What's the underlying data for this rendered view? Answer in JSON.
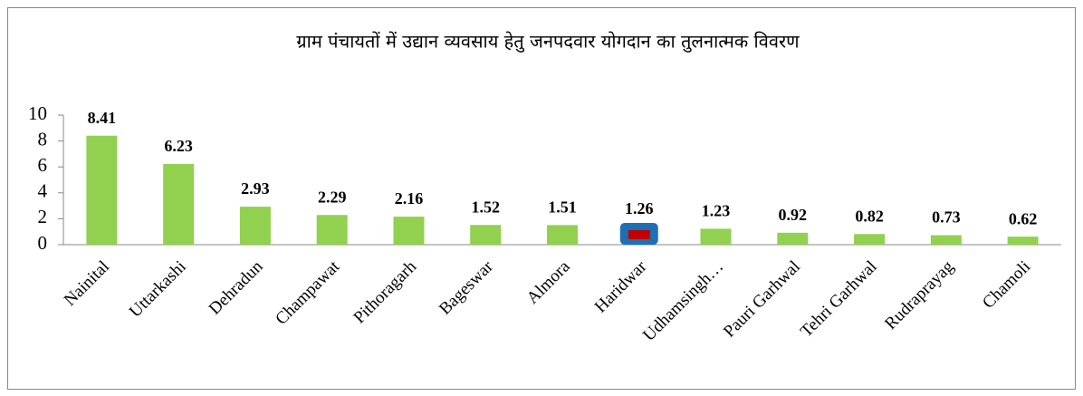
{
  "chart_data": {
    "type": "bar",
    "title": "ग्राम पंचायतों में उद्यान व्यवसाय हेतु जनपदवार योगदान का तुलनात्मक विवरण",
    "categories": [
      "Nainital",
      "Uttarkashi",
      "Dehradun",
      "Champawat",
      "Pithoragarh",
      "Bageswar",
      "Almora",
      "Haridwar",
      "Udhamsingh…",
      "Pauri Garhwal",
      "Tehri Garhwal",
      "Rudraprayag",
      "Chamoli"
    ],
    "values": [
      8.41,
      6.23,
      2.93,
      2.29,
      2.16,
      1.52,
      1.51,
      1.26,
      1.23,
      0.92,
      0.82,
      0.73,
      0.62
    ],
    "colors": [
      "#92d050",
      "#92d050",
      "#92d050",
      "#92d050",
      "#92d050",
      "#92d050",
      "#92d050",
      "#1f6fb5",
      "#92d050",
      "#92d050",
      "#92d050",
      "#92d050",
      "#92d050"
    ],
    "ylim": [
      0,
      10
    ],
    "yticks": [
      0,
      2,
      4,
      6,
      8,
      10
    ],
    "grid": false
  }
}
